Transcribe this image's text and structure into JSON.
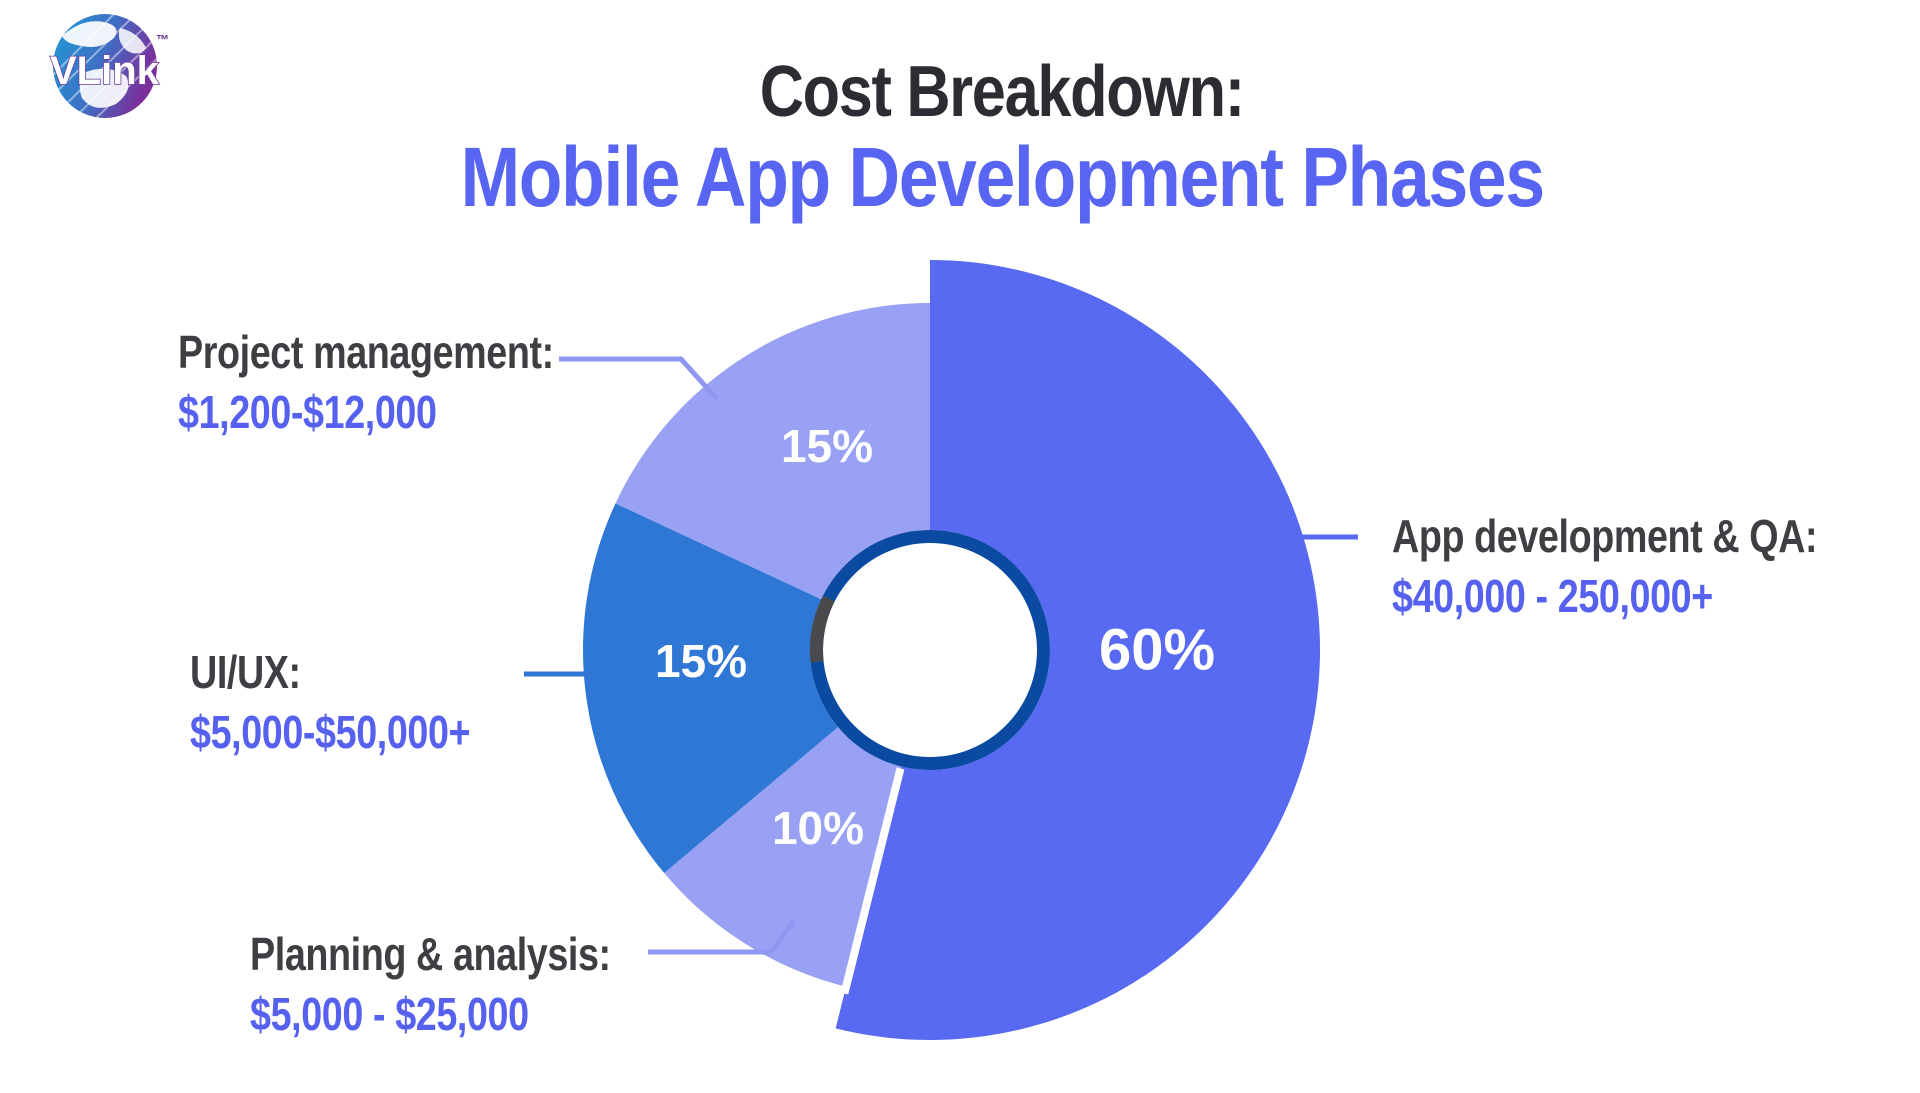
{
  "logo": {
    "brand": "VLink",
    "tm": "™"
  },
  "title": {
    "line1": "Cost Breakdown:",
    "line2": "Mobile App Development Phases"
  },
  "colors": {
    "accent_indigo": "#5869F2",
    "light_periwinkle": "#98A1F4",
    "medium_blue": "#2E77D5",
    "ring_navy": "#0A4AA0",
    "ring_gray": "#4A4A4D",
    "callout_light": "#8F97F3",
    "title_dark": "#2B2D33",
    "label_dark": "#3E3E43",
    "money_indigo": "#5661F0",
    "pct_text": "#FFFFFF",
    "background": "#FFFFFF"
  },
  "chart_data": {
    "type": "pie",
    "subtype": "donut-with-callouts",
    "title": "Cost Breakdown: Mobile App Development Phases",
    "legend_position": "callout labels around chart",
    "grid": false,
    "categories": [
      "App development & QA",
      "Planning & analysis",
      "UI/UX",
      "Project management"
    ],
    "values": [
      60,
      10,
      15,
      15
    ],
    "slices": [
      {
        "label": "App development & QA",
        "callout_title": "App development & QA:",
        "pct_label": "60%",
        "value_pct": 60,
        "cost_range": "$40,000 - 250,000+",
        "color": "#5869F2",
        "drawn": {
          "start_deg_cw_from_top": 0,
          "end_deg_cw_from_top": 194,
          "outer_radius": 390
        }
      },
      {
        "label": "Planning & analysis",
        "callout_title": "Planning & analysis:",
        "pct_label": "10%",
        "value_pct": 10,
        "cost_range": "$5,000 - $25,000",
        "color": "#98A1F4",
        "drawn": {
          "start_deg_cw_from_top": 194,
          "end_deg_cw_from_top": 230,
          "outer_radius": 347
        }
      },
      {
        "label": "UI/UX",
        "callout_title": "UI/UX:",
        "pct_label": "15%",
        "value_pct": 15,
        "cost_range": "$5,000-$50,000+",
        "color": "#2E77D5",
        "drawn": {
          "start_deg_cw_from_top": 230,
          "end_deg_cw_from_top": 295,
          "outer_radius": 347
        }
      },
      {
        "label": "Project management",
        "callout_title": "Project management:",
        "pct_label": "15%",
        "value_pct": 15,
        "cost_range": "$1,200-$12,000",
        "color": "#98A1F4",
        "drawn": {
          "start_deg_cw_from_top": 295,
          "end_deg_cw_from_top": 360,
          "outer_radius": 347
        }
      }
    ],
    "donut_hole": {
      "ring_color": "#0A4AA0",
      "ring_gray_arc_deg_cw_from_top": [
        264,
        297
      ],
      "gray_color": "#4A4A4D",
      "hole_fill": "#FFFFFF"
    }
  }
}
